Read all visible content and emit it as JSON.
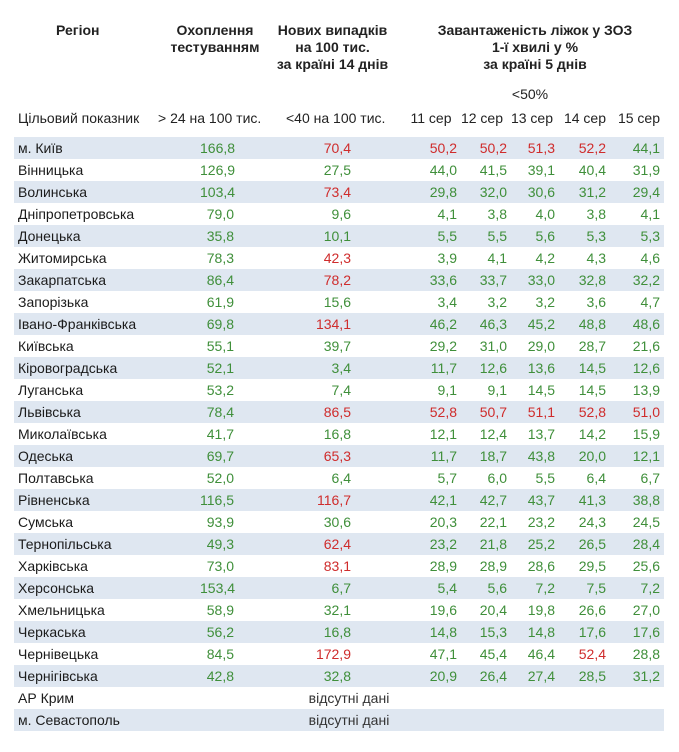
{
  "headers": {
    "region": "Регіон",
    "testing": [
      "Охоплення",
      "тестуванням"
    ],
    "cases": [
      "Нових випадків",
      "на 100 тис.",
      "за країні 14 днів"
    ],
    "beds": [
      "Завантаженість ліжок у ЗОЗ",
      "1-ї хвилі у %",
      "за країні 5 днів"
    ],
    "beds_threshold": "<50%"
  },
  "subheaders": {
    "target": "Цільовий показник",
    "testing_target": "> 24 на 100 тис.",
    "cases_target": "<40 на 100 тис.",
    "days": [
      "11 сер",
      "12 сер",
      "13 сер",
      "14 сер",
      "15 сер"
    ]
  },
  "colors": {
    "good": "#3f8f3a",
    "bad": "#cf2c2c",
    "stripe": "#dfe7f1"
  },
  "rows": [
    {
      "region": "м. Київ",
      "testing": "166,8",
      "cases": "70,4",
      "beds": [
        "50,2",
        "50,2",
        "51,3",
        "52,2",
        "44,1"
      ]
    },
    {
      "region": "Вінницька",
      "testing": "126,9",
      "cases": "27,5",
      "beds": [
        "44,0",
        "41,5",
        "39,1",
        "40,4",
        "31,9"
      ]
    },
    {
      "region": "Волинська",
      "testing": "103,4",
      "cases": "73,4",
      "beds": [
        "29,8",
        "32,0",
        "30,6",
        "31,2",
        "29,4"
      ]
    },
    {
      "region": "Дніпропетровська",
      "testing": "79,0",
      "cases": "9,6",
      "beds": [
        "4,1",
        "3,8",
        "4,0",
        "3,8",
        "4,1"
      ]
    },
    {
      "region": "Донецька",
      "testing": "35,8",
      "cases": "10,1",
      "beds": [
        "5,5",
        "5,5",
        "5,6",
        "5,3",
        "5,3"
      ]
    },
    {
      "region": "Житомирська",
      "testing": "78,3",
      "cases": "42,3",
      "beds": [
        "3,9",
        "4,1",
        "4,2",
        "4,3",
        "4,6"
      ]
    },
    {
      "region": "Закарпатська",
      "testing": "86,4",
      "cases": "78,2",
      "beds": [
        "33,6",
        "33,7",
        "33,0",
        "32,8",
        "32,2"
      ]
    },
    {
      "region": "Запорізька",
      "testing": "61,9",
      "cases": "15,6",
      "beds": [
        "3,4",
        "3,2",
        "3,2",
        "3,6",
        "4,7"
      ]
    },
    {
      "region": "Івано-Франківська",
      "testing": "69,8",
      "cases": "134,1",
      "beds": [
        "46,2",
        "46,3",
        "45,2",
        "48,8",
        "48,6"
      ]
    },
    {
      "region": "Київська",
      "testing": "55,1",
      "cases": "39,7",
      "beds": [
        "29,2",
        "31,0",
        "29,0",
        "28,7",
        "21,6"
      ]
    },
    {
      "region": "Кіровоградська",
      "testing": "52,1",
      "cases": "3,4",
      "beds": [
        "11,7",
        "12,6",
        "13,6",
        "14,5",
        "12,6"
      ]
    },
    {
      "region": "Луганська",
      "testing": "53,2",
      "cases": "7,4",
      "beds": [
        "9,1",
        "9,1",
        "14,5",
        "14,5",
        "13,9"
      ]
    },
    {
      "region": "Львівська",
      "testing": "78,4",
      "cases": "86,5",
      "beds": [
        "52,8",
        "50,7",
        "51,1",
        "52,8",
        "51,0"
      ]
    },
    {
      "region": "Миколаївська",
      "testing": "41,7",
      "cases": "16,8",
      "beds": [
        "12,1",
        "12,4",
        "13,7",
        "14,2",
        "15,9"
      ]
    },
    {
      "region": "Одеська",
      "testing": "69,7",
      "cases": "65,3",
      "beds": [
        "11,7",
        "18,7",
        "43,8",
        "20,0",
        "12,1"
      ]
    },
    {
      "region": "Полтавська",
      "testing": "52,0",
      "cases": "6,4",
      "beds": [
        "5,7",
        "6,0",
        "5,5",
        "6,4",
        "6,7"
      ]
    },
    {
      "region": "Рівненська",
      "testing": "116,5",
      "cases": "116,7",
      "beds": [
        "42,1",
        "42,7",
        "43,7",
        "41,3",
        "38,8"
      ]
    },
    {
      "region": "Сумська",
      "testing": "93,9",
      "cases": "30,6",
      "beds": [
        "20,3",
        "22,1",
        "23,2",
        "24,3",
        "24,5"
      ]
    },
    {
      "region": "Тернопільська",
      "testing": "49,3",
      "cases": "62,4",
      "beds": [
        "23,2",
        "21,8",
        "25,2",
        "26,5",
        "28,4"
      ]
    },
    {
      "region": "Харківська",
      "testing": "73,0",
      "cases": "83,1",
      "beds": [
        "28,9",
        "28,9",
        "28,6",
        "29,5",
        "25,6"
      ]
    },
    {
      "region": "Херсонська",
      "testing": "153,4",
      "cases": "6,7",
      "beds": [
        "5,4",
        "5,6",
        "7,2",
        "7,5",
        "7,2"
      ]
    },
    {
      "region": "Хмельницька",
      "testing": "58,9",
      "cases": "32,1",
      "beds": [
        "19,6",
        "20,4",
        "19,8",
        "26,6",
        "27,0"
      ]
    },
    {
      "region": "Черкаська",
      "testing": "56,2",
      "cases": "16,8",
      "beds": [
        "14,8",
        "15,3",
        "14,8",
        "17,6",
        "17,6"
      ]
    },
    {
      "region": "Чернівецька",
      "testing": "84,5",
      "cases": "172,9",
      "beds": [
        "47,1",
        "45,4",
        "46,4",
        "52,4",
        "28,8"
      ]
    },
    {
      "region": "Чернігівська",
      "testing": "42,8",
      "cases": "32,8",
      "beds": [
        "20,9",
        "26,4",
        "27,4",
        "28,5",
        "31,2"
      ]
    },
    {
      "region": "АР Крим",
      "no_data": "відсутні дані"
    },
    {
      "region": "м. Севастополь",
      "no_data": "відсутні дані"
    }
  ]
}
